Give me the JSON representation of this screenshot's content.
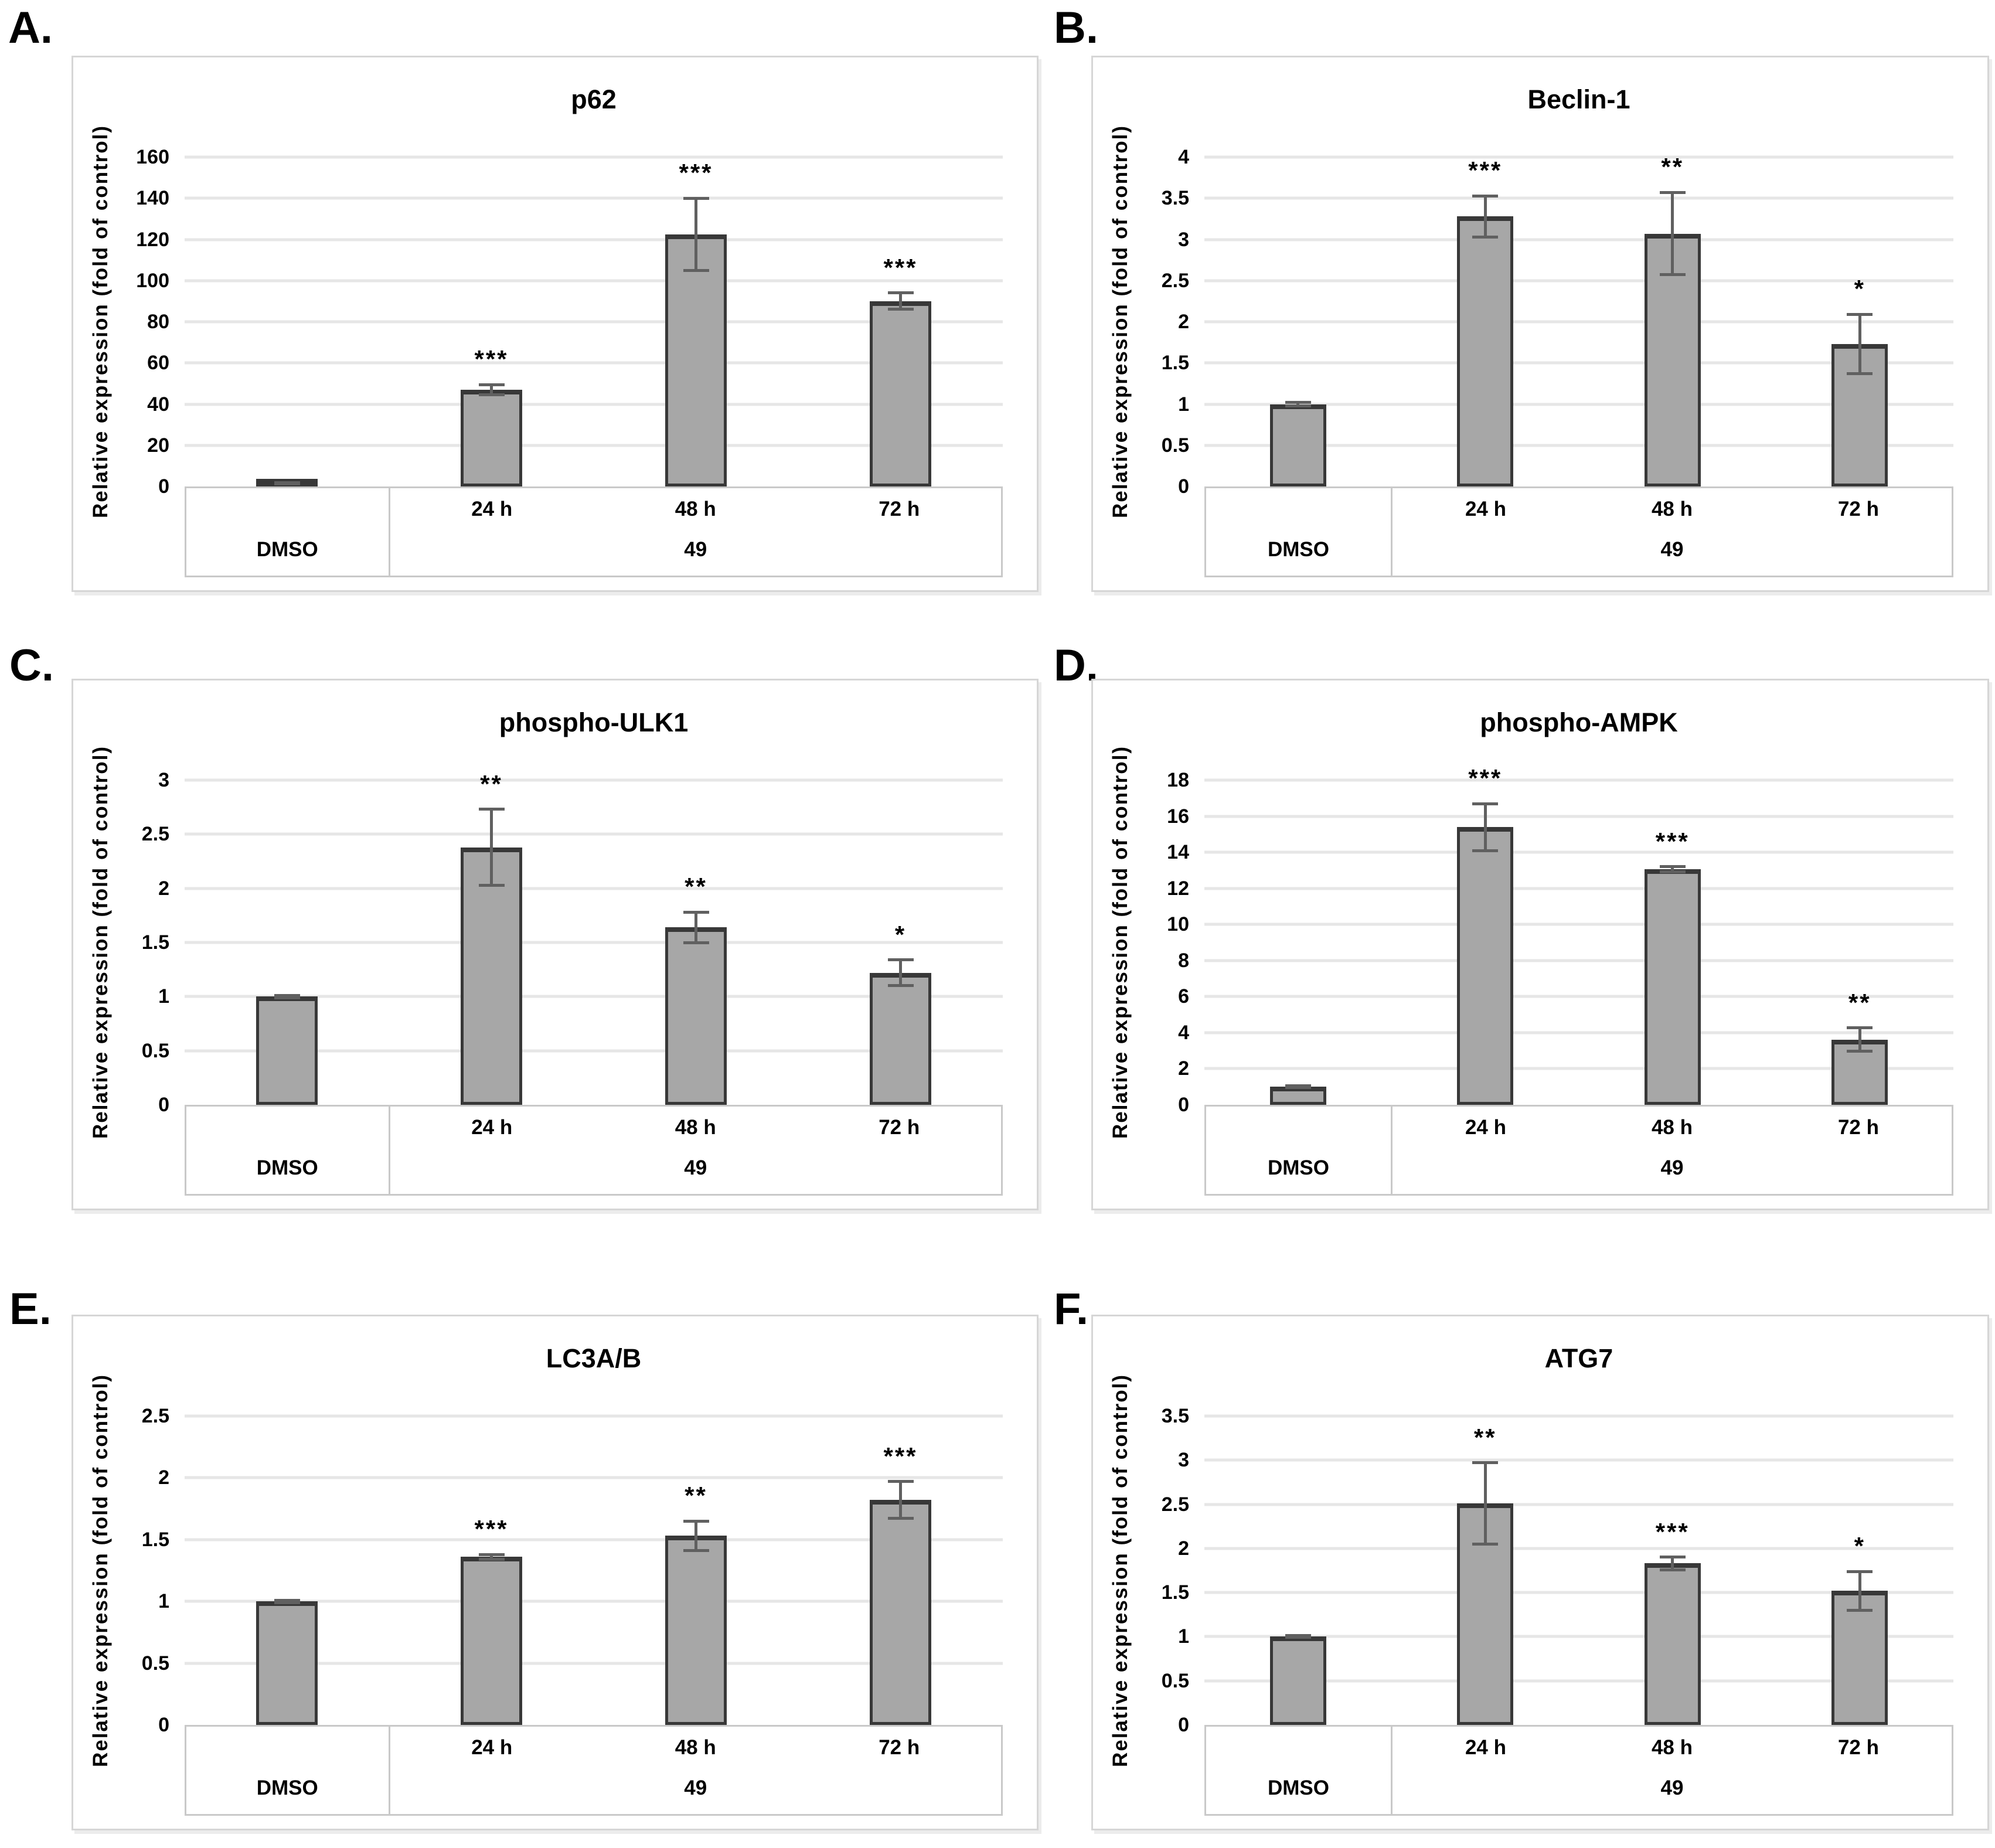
{
  "figure": {
    "description": "Six-panel western blot quantification figure, autophagy markers after treatment with compound 49 vs DMSO control",
    "bar_count_per_panel": 4
  },
  "colors": {
    "bar_fill": "#a7a7a7",
    "bar_border": "#383838",
    "error_bar": "#606060",
    "gridline": "#e6e6e6",
    "panel_border": "#d6d6d6",
    "table_border": "#c9c9c9",
    "text": "#000000"
  },
  "chart_data": [
    {
      "type": "bar",
      "panel_label": "A.",
      "title": "p62",
      "ylabel": "Relative expression (fold of control)",
      "categories": [
        "DMSO",
        "24 h",
        "48 h",
        "72 h"
      ],
      "group_labels": [
        "DMSO",
        "49"
      ],
      "time_labels": [
        "24 h",
        "48 h",
        "72 h"
      ],
      "values": [
        1.5,
        47,
        122.5,
        90
      ],
      "errors": [
        0.3,
        2.5,
        17.5,
        4
      ],
      "significance": [
        "",
        "***",
        "***",
        "***"
      ],
      "yticks": [
        0,
        20,
        40,
        60,
        80,
        100,
        120,
        140,
        160
      ],
      "ylim": [
        0,
        160
      ],
      "grid": true,
      "legend": false
    },
    {
      "type": "bar",
      "panel_label": "B.",
      "title": "Beclin-1",
      "ylabel": "Relative expression (fold of control)",
      "categories": [
        "DMSO",
        "24 h",
        "48 h",
        "72 h"
      ],
      "group_labels": [
        "DMSO",
        "49"
      ],
      "time_labels": [
        "24 h",
        "48 h",
        "72 h"
      ],
      "values": [
        1.0,
        3.28,
        3.07,
        1.73
      ],
      "errors": [
        0.02,
        0.25,
        0.5,
        0.36
      ],
      "significance": [
        "",
        "***",
        "**",
        "*"
      ],
      "yticks": [
        0,
        0.5,
        1,
        1.5,
        2,
        2.5,
        3,
        3.5,
        4
      ],
      "ylim": [
        0,
        4
      ],
      "grid": true,
      "legend": false
    },
    {
      "type": "bar",
      "panel_label": "C.",
      "title": "phospho-ULK1",
      "ylabel": "Relative expression (fold of control)",
      "categories": [
        "DMSO",
        "24 h",
        "48 h",
        "72 h"
      ],
      "group_labels": [
        "DMSO",
        "49"
      ],
      "time_labels": [
        "24 h",
        "48 h",
        "72 h"
      ],
      "values": [
        1.0,
        2.38,
        1.64,
        1.22
      ],
      "errors": [
        0.01,
        0.35,
        0.14,
        0.12
      ],
      "significance": [
        "",
        "**",
        "**",
        "*"
      ],
      "yticks": [
        0,
        0.5,
        1,
        1.5,
        2,
        2.5,
        3
      ],
      "ylim": [
        0,
        3
      ],
      "grid": true,
      "legend": false
    },
    {
      "type": "bar",
      "panel_label": "D.",
      "title": "phospho-AMPK",
      "ylabel": "Relative expression (fold of control)",
      "categories": [
        "DMSO",
        "24 h",
        "48 h",
        "72 h"
      ],
      "group_labels": [
        "DMSO",
        "49"
      ],
      "time_labels": [
        "24 h",
        "48 h",
        "72 h"
      ],
      "values": [
        1.0,
        15.4,
        13.05,
        3.62
      ],
      "errors": [
        0.05,
        1.3,
        0.15,
        0.65
      ],
      "significance": [
        "",
        "***",
        "***",
        "**"
      ],
      "yticks": [
        0,
        2,
        4,
        6,
        8,
        10,
        12,
        14,
        16,
        18
      ],
      "ylim": [
        0,
        18
      ],
      "grid": true,
      "legend": false
    },
    {
      "type": "bar",
      "panel_label": "E.",
      "title": "LC3A/B",
      "ylabel": "Relative expression (fold of control)",
      "categories": [
        "DMSO",
        "24 h",
        "48 h",
        "72 h"
      ],
      "group_labels": [
        "DMSO",
        "49"
      ],
      "time_labels": [
        "24 h",
        "48 h",
        "72 h"
      ],
      "values": [
        1.0,
        1.36,
        1.53,
        1.82
      ],
      "errors": [
        0.01,
        0.02,
        0.12,
        0.15
      ],
      "significance": [
        "",
        "***",
        "**",
        "***"
      ],
      "yticks": [
        0,
        0.5,
        1,
        1.5,
        2,
        2.5
      ],
      "ylim": [
        0,
        2.5
      ],
      "grid": true,
      "legend": false
    },
    {
      "type": "bar",
      "panel_label": "F.",
      "title": "ATG7",
      "ylabel": "Relative expression (fold of control)",
      "categories": [
        "DMSO",
        "24 h",
        "48 h",
        "72 h"
      ],
      "group_labels": [
        "DMSO",
        "49"
      ],
      "time_labels": [
        "24 h",
        "48 h",
        "72 h"
      ],
      "values": [
        1.0,
        2.51,
        1.83,
        1.52
      ],
      "errors": [
        0.01,
        0.46,
        0.07,
        0.22
      ],
      "significance": [
        "",
        "**",
        "***",
        "*"
      ],
      "yticks": [
        0,
        0.5,
        1,
        1.5,
        2,
        2.5,
        3,
        3.5
      ],
      "ylim": [
        0,
        3.5
      ],
      "grid": true,
      "legend": false
    }
  ]
}
